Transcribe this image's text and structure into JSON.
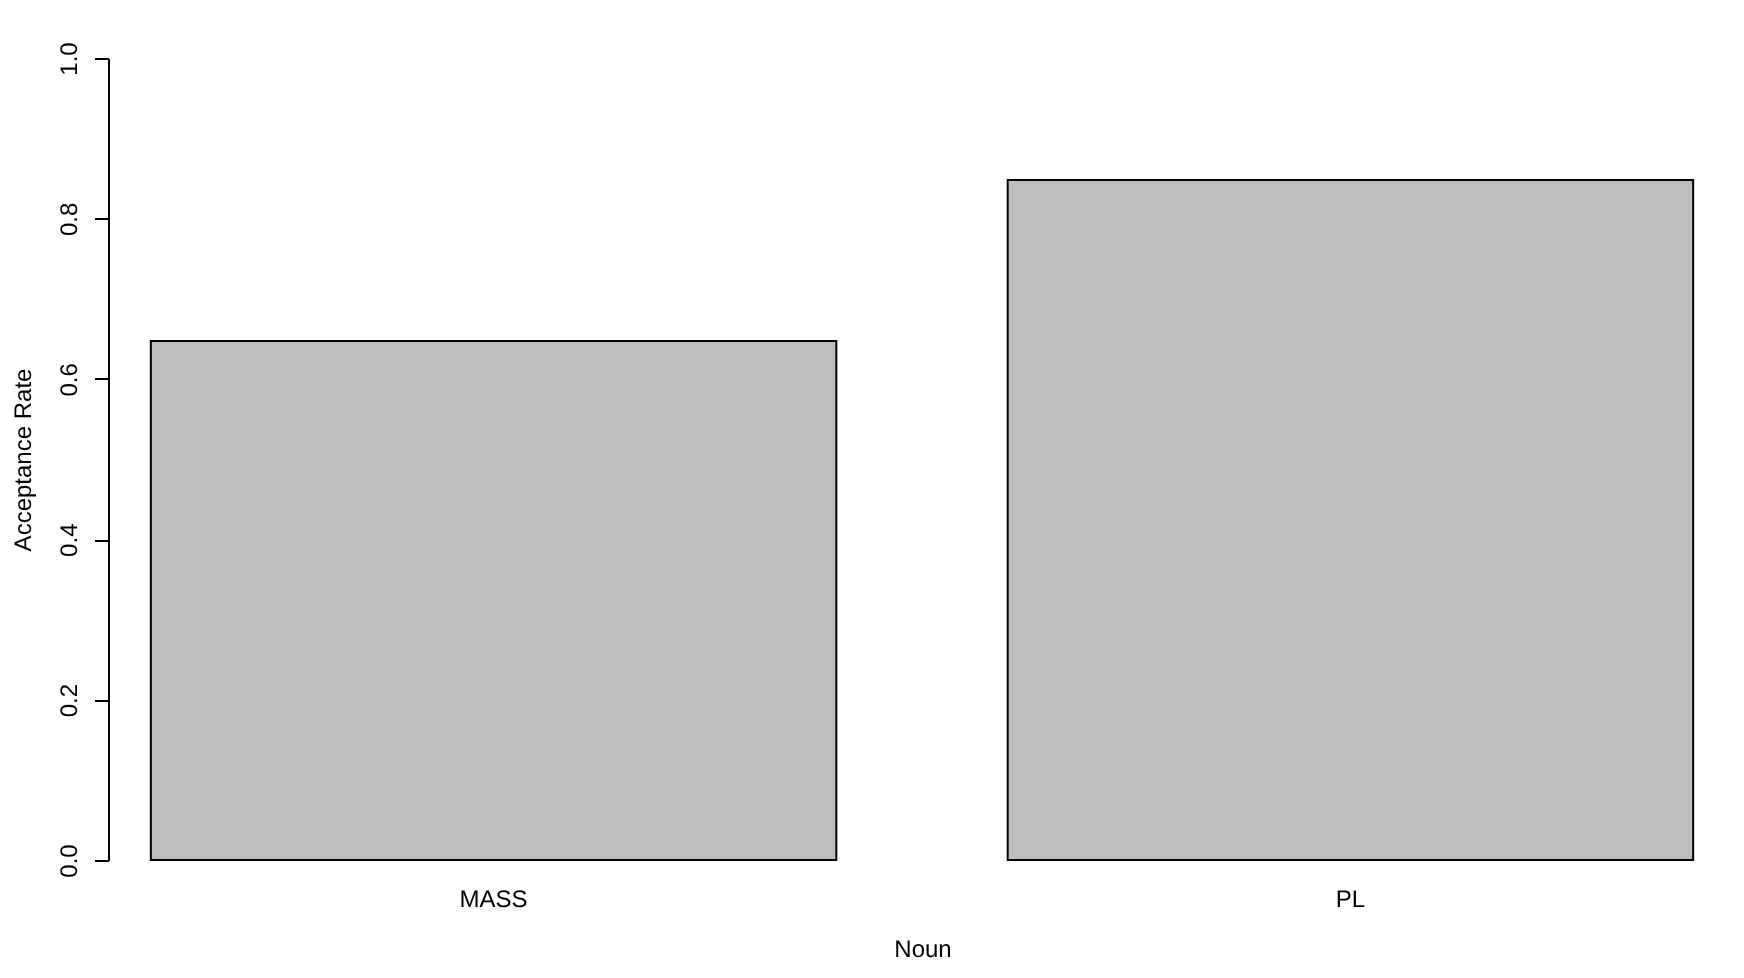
{
  "chart_data": {
    "type": "bar",
    "categories": [
      "MASS",
      "PL"
    ],
    "values": [
      0.647,
      0.848
    ],
    "color": "#bebebe",
    "xlabel": "Noun",
    "ylabel": "Acceptance Rate",
    "ylim": [
      0,
      1
    ],
    "yticks": [
      {
        "value": 0,
        "label": "0.0"
      },
      {
        "value": 0.2,
        "label": "0.2"
      },
      {
        "value": 0.4,
        "label": "0.4"
      },
      {
        "value": 0.6,
        "label": "0.6"
      },
      {
        "value": 0.8,
        "label": "0.8"
      },
      {
        "value": 1,
        "label": "1.0"
      }
    ]
  }
}
